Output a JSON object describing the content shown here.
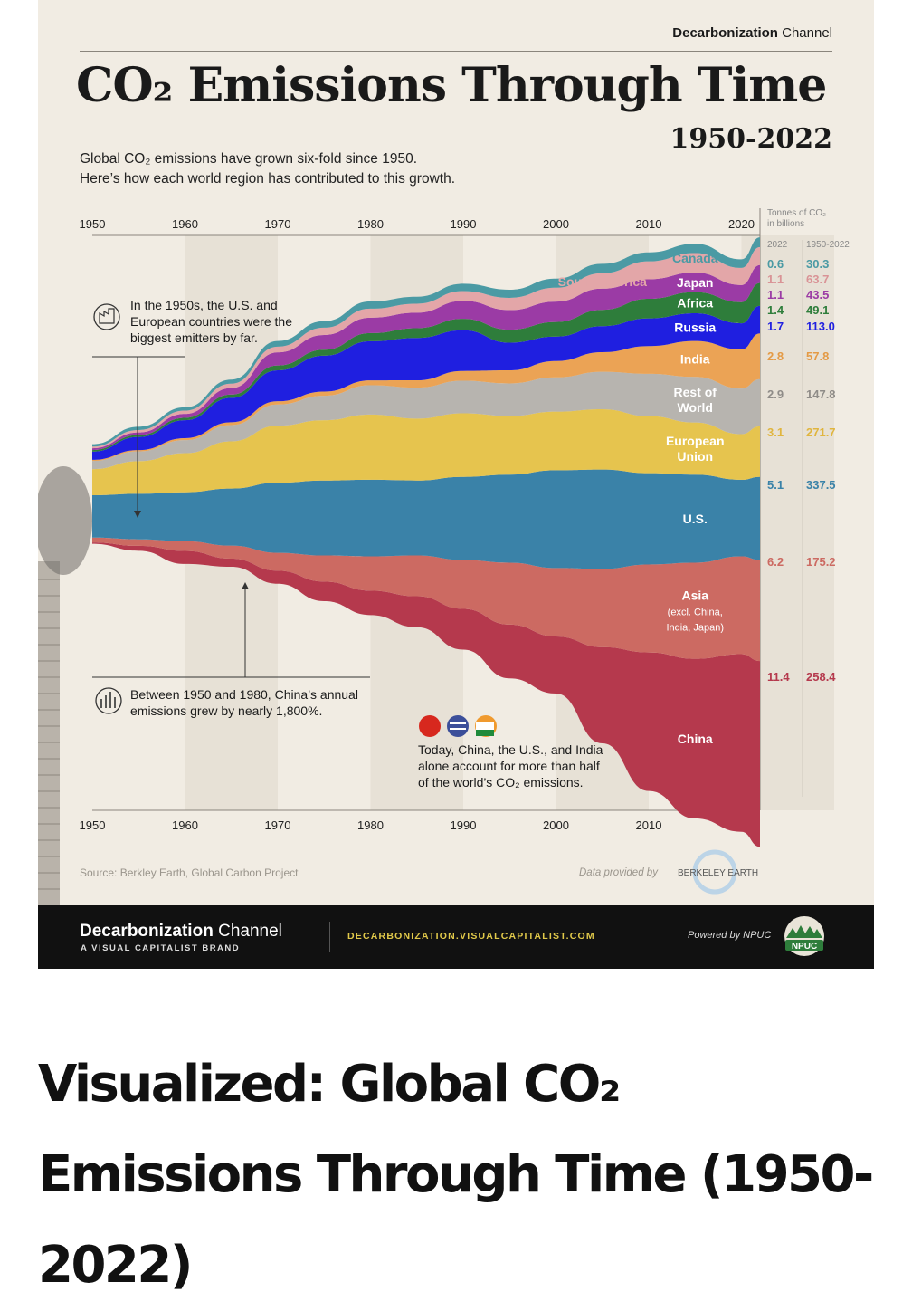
{
  "brand": {
    "name_bold": "Decarbonization",
    "name_light": " Channel"
  },
  "title": "CO₂ Emissions Through Time",
  "years_title": "1950-2022",
  "subtitle_line1": "Global CO₂ emissions have grown six-fold since 1950.",
  "subtitle_line2": "Here’s how each world region has contributed to this growth.",
  "annotations": {
    "note1": [
      "In the 1950s, the U.S. and",
      "European countries were the",
      "biggest emitters by far."
    ],
    "note2": [
      "Between 1950 and 1980, China’s annual",
      "emissions grew by nearly 1,800%."
    ],
    "note3": [
      "Today, China, the U.S., and India",
      "alone account for more than half",
      "of the world’s CO₂ emissions."
    ]
  },
  "source": "Source: Berkley Earth, Global Carbon Project",
  "data_provided": "Data provided by",
  "data_provider": "BERKELEY EARTH",
  "footer": {
    "brand_bold": "Decarbonization",
    "brand_light": " Channel",
    "sub": "A VISUAL CAPITALIST BRAND",
    "url": "DECARBONIZATION.VISUALCAPITALIST.COM",
    "powered": "Powered by NPUC",
    "logo_text": "NPUC"
  },
  "headline": "Visualized: Global CO₂ Emissions Through Time (1950-2022)",
  "chart_data": {
    "type": "area",
    "subtype": "streamgraph",
    "x": [
      1950,
      1955,
      1960,
      1965,
      1970,
      1975,
      1980,
      1985,
      1990,
      1995,
      2000,
      2005,
      2010,
      2015,
      2020,
      2022
    ],
    "x_ticks": [
      "1950",
      "1960",
      "1970",
      "1980",
      "1990",
      "2000",
      "2010",
      "2020"
    ],
    "units_label_line1": "Tonnes of CO₂",
    "units_label_line2": "in billions",
    "col_2022": "2022",
    "col_total": "1950-2022",
    "series": [
      {
        "name": "China",
        "label_lines": [
          "China"
        ],
        "color": "#b5394d",
        "value_2022": "11.4",
        "total": "258.4",
        "values": [
          0.08,
          0.3,
          0.8,
          0.5,
          0.8,
          1.2,
          1.5,
          1.9,
          2.5,
          3.3,
          3.5,
          5.9,
          8.5,
          9.8,
          10.9,
          11.4
        ]
      },
      {
        "name": "Asia",
        "label_lines": [
          "Asia",
          "(excl. China,",
          "India, Japan)"
        ],
        "color": "#cc6a62",
        "value_2022": "6.2",
        "total": "175.2",
        "values": [
          0.3,
          0.4,
          0.6,
          0.8,
          1.1,
          1.6,
          2.1,
          2.5,
          3.0,
          3.8,
          4.2,
          4.8,
          5.4,
          5.9,
          6.0,
          6.2
        ]
      },
      {
        "name": "U.S.",
        "label_lines": [
          "U.S."
        ],
        "color": "#3a82a8",
        "value_2022": "5.1",
        "total": "337.5",
        "values": [
          2.6,
          2.8,
          3.0,
          3.5,
          4.3,
          4.6,
          4.7,
          4.6,
          5.1,
          5.4,
          6.0,
          6.1,
          5.6,
          5.4,
          4.7,
          5.1
        ]
      },
      {
        "name": "European Union",
        "label_lines": [
          "European",
          "Union"
        ],
        "color": "#e6c44e",
        "value_2022": "3.1",
        "total": "271.7",
        "values": [
          1.6,
          2.0,
          2.4,
          2.9,
          3.5,
          3.7,
          4.0,
          3.8,
          3.9,
          3.6,
          3.6,
          3.7,
          3.5,
          3.2,
          2.8,
          3.1
        ]
      },
      {
        "name": "Rest of World",
        "label_lines": [
          "Rest of",
          "World"
        ],
        "color": "#b7b4af",
        "value_2022": "2.9",
        "total": "147.8",
        "values": [
          0.5,
          0.6,
          0.8,
          1.0,
          1.3,
          1.5,
          1.8,
          1.9,
          2.0,
          2.0,
          2.1,
          2.3,
          2.6,
          2.8,
          2.8,
          2.9
        ]
      },
      {
        "name": "India",
        "label_lines": [
          "India"
        ],
        "color": "#eba355",
        "value_2022": "2.8",
        "total": "57.8",
        "values": [
          0.07,
          0.08,
          0.12,
          0.17,
          0.2,
          0.26,
          0.3,
          0.45,
          0.6,
          0.8,
          1.0,
          1.2,
          1.7,
          2.2,
          2.4,
          2.8
        ]
      },
      {
        "name": "Russia",
        "label_lines": [
          "Russia"
        ],
        "color": "#1f1fe0",
        "value_2022": "1.7",
        "total": "113.0",
        "values": [
          0.5,
          0.8,
          1.1,
          1.5,
          1.9,
          2.2,
          2.4,
          2.6,
          2.5,
          1.7,
          1.5,
          1.6,
          1.7,
          1.7,
          1.6,
          1.7
        ]
      },
      {
        "name": "Africa",
        "label_lines": [
          "Africa"
        ],
        "color": "#2e7d3b",
        "value_2022": "1.4",
        "total": "49.1",
        "values": [
          0.1,
          0.12,
          0.15,
          0.2,
          0.3,
          0.37,
          0.5,
          0.6,
          0.7,
          0.8,
          0.9,
          1.0,
          1.2,
          1.3,
          1.3,
          1.4
        ]
      },
      {
        "name": "Japan",
        "label_lines": [
          "Japan"
        ],
        "color": "#9b3ba5",
        "value_2022": "1.1",
        "total": "43.5",
        "values": [
          0.11,
          0.16,
          0.24,
          0.4,
          0.8,
          0.9,
          0.95,
          0.95,
          1.1,
          1.2,
          1.25,
          1.3,
          1.2,
          1.2,
          1.05,
          1.1
        ]
      },
      {
        "name": "South America",
        "label_lines": [
          "South America"
        ],
        "color": "#e3a6a8",
        "value_2022": "1.1",
        "total": "63.7",
        "values": [
          0.1,
          0.15,
          0.2,
          0.27,
          0.35,
          0.45,
          0.55,
          0.55,
          0.6,
          0.75,
          0.85,
          0.95,
          1.1,
          1.2,
          1.05,
          1.1
        ]
      },
      {
        "name": "Canada",
        "label_lines": [
          "Canada"
        ],
        "color": "#4b9aa4",
        "value_2022": "0.6",
        "total": "30.3",
        "values": [
          0.15,
          0.2,
          0.2,
          0.25,
          0.35,
          0.4,
          0.45,
          0.43,
          0.45,
          0.5,
          0.56,
          0.57,
          0.55,
          0.57,
          0.53,
          0.6
        ]
      }
    ]
  }
}
